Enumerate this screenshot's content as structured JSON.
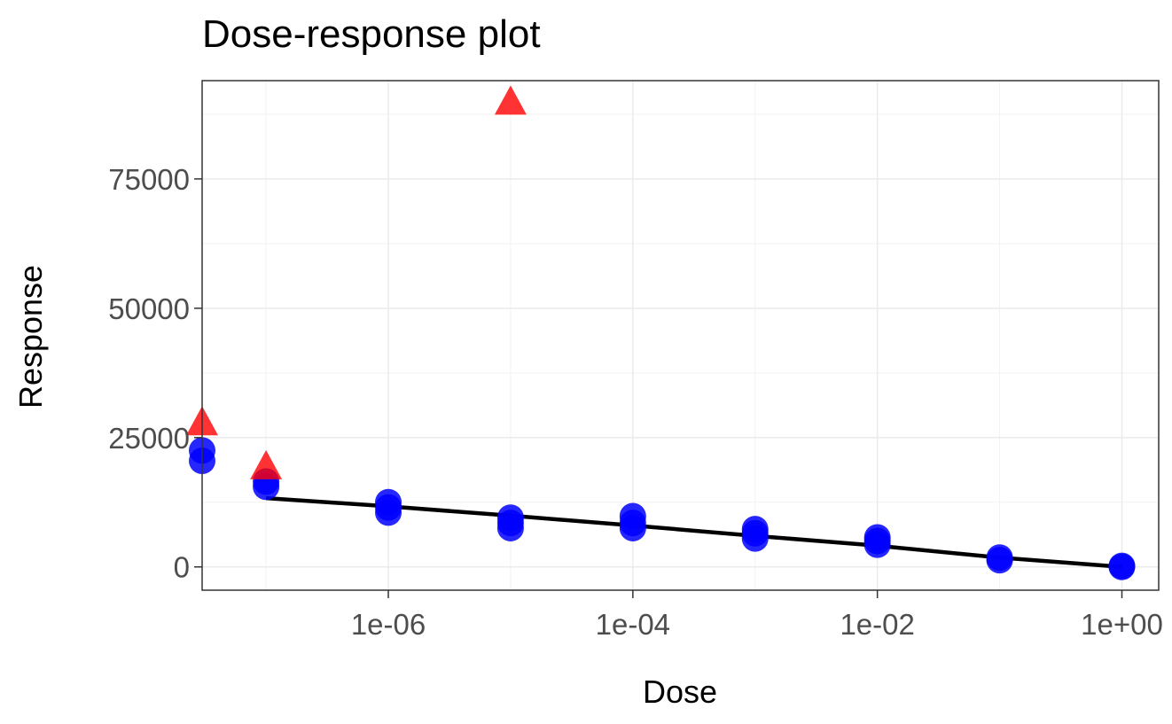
{
  "chart_data": {
    "type": "scatter",
    "title": "Dose-response plot",
    "xlabel": "Dose",
    "ylabel": "Response",
    "x_scale": "log10",
    "xlim": [
      3e-08,
      2
    ],
    "ylim": [
      -4500,
      94000
    ],
    "grid": true,
    "x_ticks": [
      {
        "value": 1e-06,
        "label": "1e-06"
      },
      {
        "value": 0.0001,
        "label": "1e-04"
      },
      {
        "value": 0.01,
        "label": "1e-02"
      },
      {
        "value": 1,
        "label": "1e+00"
      }
    ],
    "y_ticks": [
      {
        "value": 0,
        "label": "0"
      },
      {
        "value": 25000,
        "label": "25000"
      },
      {
        "value": 50000,
        "label": "50000"
      },
      {
        "value": 75000,
        "label": "75000"
      }
    ],
    "series": [
      {
        "marker": "circle",
        "color": "#0000ff",
        "points": [
          {
            "x": 3e-08,
            "y": 20500
          },
          {
            "x": 3e-08,
            "y": 22500
          },
          {
            "x": 1e-07,
            "y": 15500
          },
          {
            "x": 1e-07,
            "y": 16500
          },
          {
            "x": 1e-06,
            "y": 10500
          },
          {
            "x": 1e-06,
            "y": 11500
          },
          {
            "x": 1e-06,
            "y": 12500
          },
          {
            "x": 1e-05,
            "y": 7500
          },
          {
            "x": 1e-05,
            "y": 8500
          },
          {
            "x": 1e-05,
            "y": 9500
          },
          {
            "x": 0.0001,
            "y": 7500
          },
          {
            "x": 0.0001,
            "y": 8500
          },
          {
            "x": 0.0001,
            "y": 9800
          },
          {
            "x": 0.001,
            "y": 5500
          },
          {
            "x": 0.001,
            "y": 6500
          },
          {
            "x": 0.001,
            "y": 7300
          },
          {
            "x": 0.01,
            "y": 4300
          },
          {
            "x": 0.01,
            "y": 5000
          },
          {
            "x": 0.01,
            "y": 5700
          },
          {
            "x": 0.1,
            "y": 1300
          },
          {
            "x": 0.1,
            "y": 1800
          },
          {
            "x": 1,
            "y": 0
          },
          {
            "x": 1,
            "y": 200
          }
        ]
      },
      {
        "marker": "triangle",
        "color": "#ff0000",
        "points": [
          {
            "x": 3e-08,
            "y": 28000
          },
          {
            "x": 1e-07,
            "y": 19500
          },
          {
            "x": 1e-05,
            "y": 90000
          }
        ]
      }
    ],
    "fit_line": {
      "color": "#000000",
      "points": [
        {
          "x": 1e-07,
          "y": 13300
        },
        {
          "x": 1e-06,
          "y": 11700
        },
        {
          "x": 1e-05,
          "y": 9900
        },
        {
          "x": 0.0001,
          "y": 8000
        },
        {
          "x": 0.001,
          "y": 6000
        },
        {
          "x": 0.01,
          "y": 4100
        },
        {
          "x": 0.1,
          "y": 1800
        },
        {
          "x": 1,
          "y": 0
        }
      ]
    }
  }
}
